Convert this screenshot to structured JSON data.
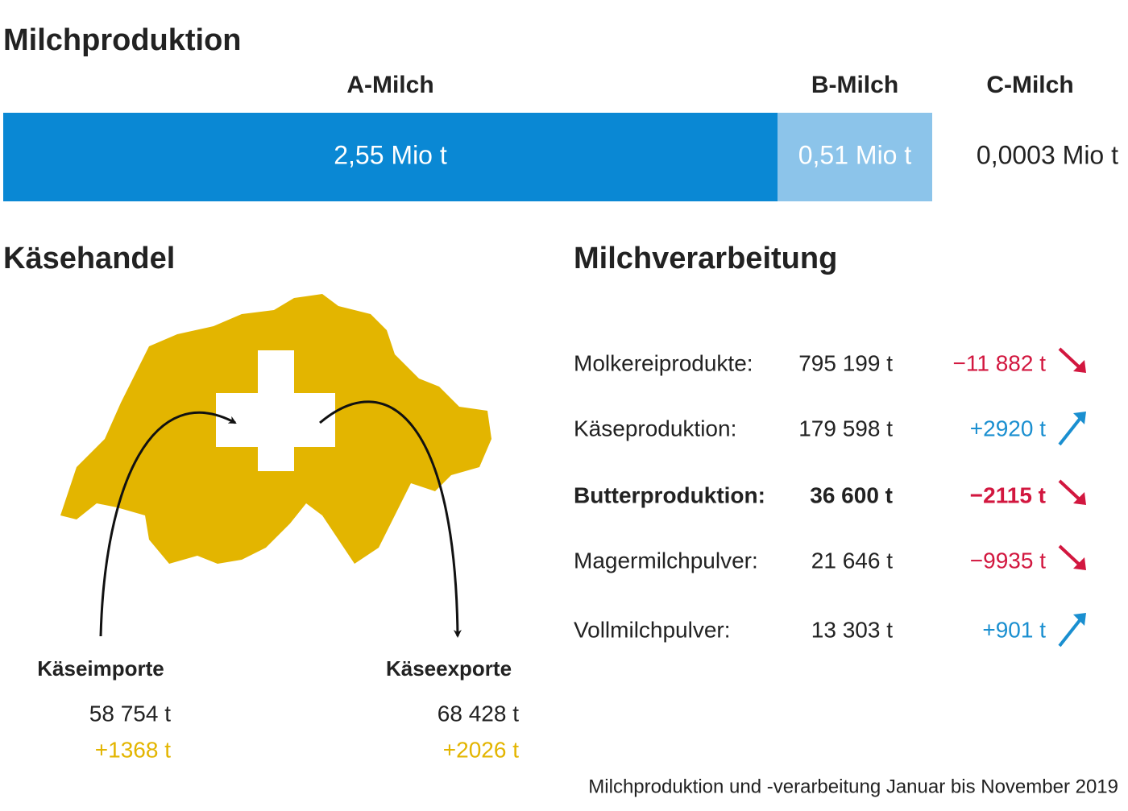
{
  "milk_production": {
    "title": "Milchproduktion",
    "segments": [
      {
        "name": "A-Milch",
        "value": "2,55 Mio t",
        "color": "#0a88d4"
      },
      {
        "name": "B-Milch",
        "value": "0,51 Mio t",
        "color": "#8cc4ea"
      },
      {
        "name": "C-Milch",
        "value": "0,0003 Mio t"
      }
    ]
  },
  "cheese_trade": {
    "title": "Käsehandel",
    "imports": {
      "label": "Käseimporte",
      "amount": "58 754 t",
      "change": "+1368 t"
    },
    "exports": {
      "label": "Käseexporte",
      "amount": "68 428 t",
      "change": "+2026 t"
    }
  },
  "processing": {
    "title": "Milchverarbeitung",
    "rows": [
      {
        "product": "Molkereiprodukte:",
        "amount": "795 199 t",
        "change": "−11 882 t",
        "trend": "down"
      },
      {
        "product": "Käseproduktion:",
        "amount": "179 598 t",
        "change": "+2920 t",
        "trend": "up"
      },
      {
        "product": "Butterproduktion:",
        "amount": "36 600 t",
        "change": "−2115 t",
        "trend": "down",
        "bold": true
      },
      {
        "product": "Magermilchpulver:",
        "amount": "21 646 t",
        "change": "−9935 t",
        "trend": "down"
      },
      {
        "product": "Vollmilchpulver:",
        "amount": "13 303 t",
        "change": "+901 t",
        "trend": "up"
      }
    ]
  },
  "footnote": "Milchproduktion und -verarbeitung Januar bis November 2019"
}
